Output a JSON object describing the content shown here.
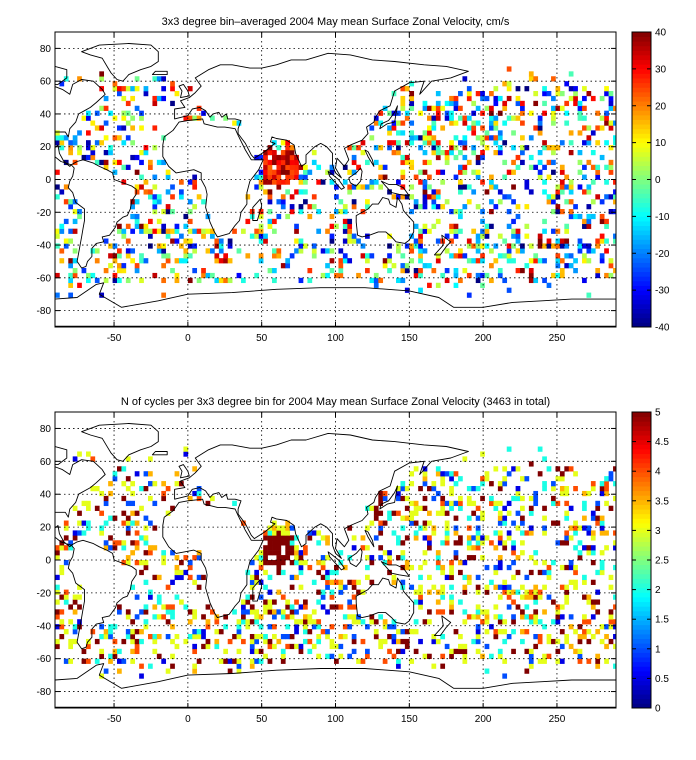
{
  "chart_data": [
    {
      "type": "heatmap",
      "title": "3x3 degree bin–averaged 2004 May mean Surface Zonal Velocity, cm/s",
      "xlim": [
        -90,
        290
      ],
      "ylim": [
        -90,
        90
      ],
      "xticks": [
        -50,
        0,
        50,
        100,
        150,
        200,
        250
      ],
      "yticks": [
        -80,
        -60,
        -40,
        -20,
        0,
        20,
        40,
        60,
        80
      ],
      "clim": [
        -40,
        40
      ],
      "colorbar_ticks": [
        -40,
        -30,
        -20,
        -10,
        0,
        10,
        20,
        30,
        40
      ],
      "colormap": "jet",
      "cell_size_deg": 3,
      "grid": true,
      "coastlines": true,
      "seed": 2004
    },
    {
      "type": "heatmap",
      "title": "N of cycles per 3x3 degree bin for 2004 May mean Surface Zonal Velocity (3463 in total)",
      "xlim": [
        -90,
        290
      ],
      "ylim": [
        -90,
        90
      ],
      "xticks": [
        -50,
        0,
        50,
        100,
        150,
        200,
        250
      ],
      "yticks": [
        -80,
        -60,
        -40,
        -20,
        0,
        20,
        40,
        60,
        80
      ],
      "clim": [
        0,
        5
      ],
      "colorbar_ticks": [
        0,
        0.5,
        1,
        1.5,
        2,
        2.5,
        3,
        3.5,
        4,
        4.5,
        5
      ],
      "colormap": "jet",
      "cell_size_deg": 3,
      "grid": true,
      "coastlines": true,
      "seed": 505
    }
  ]
}
